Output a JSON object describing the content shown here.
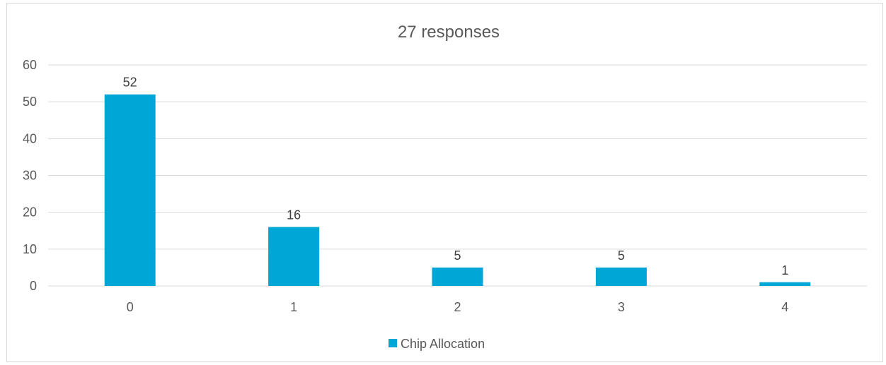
{
  "chart_data": {
    "type": "bar",
    "title": "27 responses",
    "xlabel": "",
    "ylabel": "",
    "categories": [
      "0",
      "1",
      "2",
      "3",
      "4"
    ],
    "series": [
      {
        "name": "Chip Allocation",
        "values": [
          52,
          16,
          5,
          5,
          1
        ],
        "color": "#00a6d6"
      }
    ],
    "ylim": [
      0,
      60
    ],
    "yticks": [
      0,
      10,
      20,
      30,
      40,
      50,
      60
    ],
    "grid": true,
    "legend_position": "bottom",
    "data_labels": true,
    "colors": {
      "gridline": "#d9d9d9",
      "axis_text": "#595959",
      "label_text": "#404040"
    }
  }
}
